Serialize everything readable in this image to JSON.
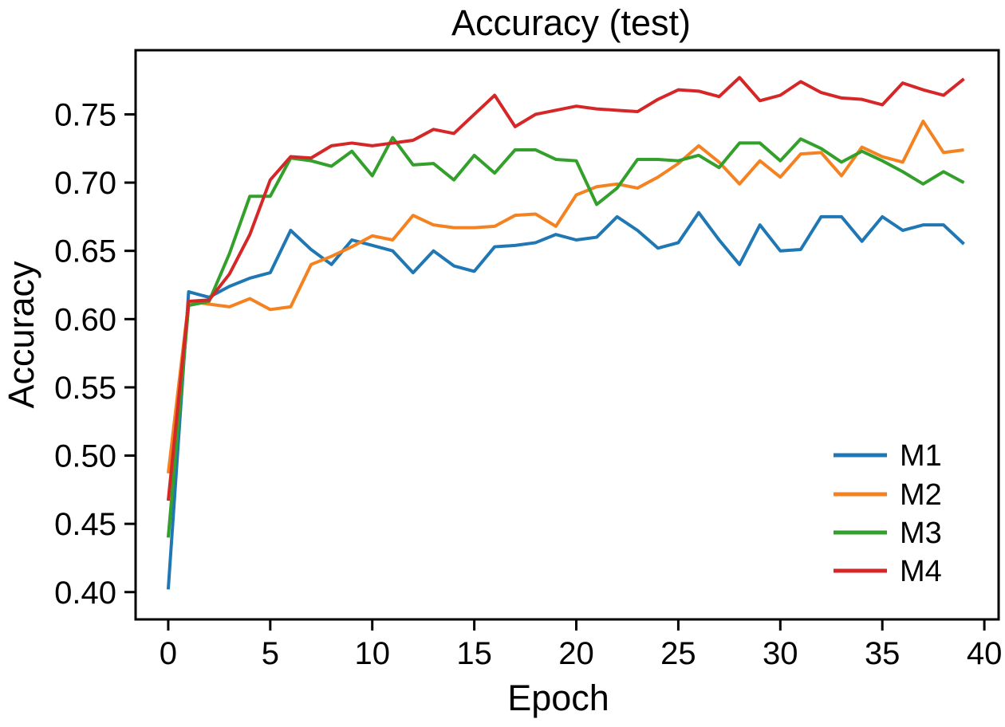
{
  "chart_data": {
    "type": "line",
    "title": "Accuracy (test)",
    "xlabel": "Epoch",
    "ylabel": "Accuracy",
    "grid": false,
    "legend_position": "lower right",
    "frame_color": "#000000",
    "background_color": "#ffffff",
    "xlim": [
      -1.6,
      40.7
    ],
    "ylim": [
      0.38,
      0.797
    ],
    "xticks": [
      0,
      5,
      10,
      15,
      20,
      25,
      30,
      35,
      40
    ],
    "yticks": [
      0.4,
      0.45,
      0.5,
      0.55,
      0.6,
      0.65,
      0.7,
      0.75
    ],
    "x": [
      0,
      1,
      2,
      3,
      4,
      5,
      6,
      7,
      8,
      9,
      10,
      11,
      12,
      13,
      14,
      15,
      16,
      17,
      18,
      19,
      20,
      21,
      22,
      23,
      24,
      25,
      26,
      27,
      28,
      29,
      30,
      31,
      32,
      33,
      34,
      35,
      36,
      37,
      38,
      39
    ],
    "series": [
      {
        "name": "M1",
        "color": "#1f77b4",
        "values": [
          0.402,
          0.62,
          0.616,
          0.624,
          0.63,
          0.634,
          0.665,
          0.651,
          0.64,
          0.658,
          0.654,
          0.65,
          0.634,
          0.65,
          0.639,
          0.635,
          0.653,
          0.654,
          0.656,
          0.662,
          0.658,
          0.66,
          0.675,
          0.665,
          0.652,
          0.656,
          0.678,
          0.658,
          0.64,
          0.669,
          0.65,
          0.651,
          0.675,
          0.675,
          0.657,
          0.675,
          0.665,
          0.669,
          0.669,
          0.655
        ]
      },
      {
        "name": "M2",
        "color": "#f58220",
        "values": [
          0.487,
          0.613,
          0.611,
          0.609,
          0.615,
          0.607,
          0.609,
          0.64,
          0.646,
          0.653,
          0.661,
          0.658,
          0.676,
          0.669,
          0.667,
          0.667,
          0.668,
          0.676,
          0.677,
          0.668,
          0.691,
          0.697,
          0.699,
          0.696,
          0.704,
          0.714,
          0.727,
          0.715,
          0.699,
          0.716,
          0.704,
          0.721,
          0.722,
          0.705,
          0.726,
          0.719,
          0.715,
          0.745,
          0.722,
          0.724
        ]
      },
      {
        "name": "M3",
        "color": "#33a02c",
        "values": [
          0.44,
          0.61,
          0.613,
          0.648,
          0.69,
          0.69,
          0.718,
          0.716,
          0.712,
          0.723,
          0.705,
          0.733,
          0.713,
          0.714,
          0.702,
          0.72,
          0.707,
          0.724,
          0.724,
          0.717,
          0.716,
          0.684,
          0.696,
          0.717,
          0.717,
          0.716,
          0.72,
          0.711,
          0.729,
          0.729,
          0.716,
          0.732,
          0.725,
          0.715,
          0.723,
          0.716,
          0.708,
          0.699,
          0.708,
          0.7
        ]
      },
      {
        "name": "M4",
        "color": "#d62728",
        "values": [
          0.467,
          0.613,
          0.614,
          0.633,
          0.662,
          0.702,
          0.719,
          0.718,
          0.727,
          0.729,
          0.727,
          0.729,
          0.731,
          0.739,
          0.736,
          0.75,
          0.764,
          0.741,
          0.75,
          0.753,
          0.756,
          0.754,
          0.753,
          0.752,
          0.761,
          0.768,
          0.767,
          0.763,
          0.777,
          0.76,
          0.764,
          0.774,
          0.766,
          0.762,
          0.761,
          0.757,
          0.773,
          0.768,
          0.764,
          0.776
        ]
      }
    ]
  }
}
